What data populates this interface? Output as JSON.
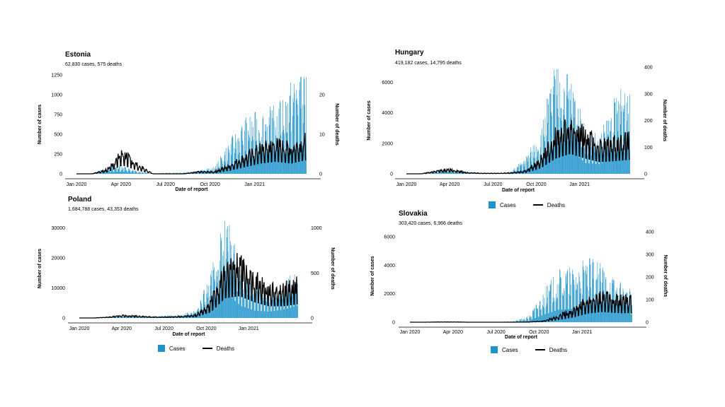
{
  "colors": {
    "cases": "#1f94cc",
    "deaths": "#000000",
    "axis": "#000000"
  },
  "legend": {
    "cases_label": "Cases",
    "deaths_label": "Deaths"
  },
  "chart_data": [
    {
      "type": "bar",
      "title": "Estonia",
      "subtitle": "62,830 cases, 575 deaths",
      "xlabel": "Date of report",
      "ylabel": "Number of cases",
      "y2label": "Number of deaths",
      "x_ticks": [
        "Jan 2020",
        "Apr 2020",
        "Jul 2020",
        "Oct 2020",
        "Jan 2021"
      ],
      "y_ticks": [
        0,
        250,
        500,
        750,
        1000,
        1250
      ],
      "y2_ticks": [
        0,
        10,
        20
      ],
      "ylim": [
        0,
        1250
      ],
      "y2lim": [
        0,
        25
      ],
      "series": [
        {
          "name": "Cases",
          "type": "bar",
          "monthly": [
            0,
            0,
            60,
            80,
            20,
            5,
            10,
            15,
            30,
            60,
            300,
            480,
            550,
            580,
            800,
            1100
          ]
        },
        {
          "name": "Deaths",
          "type": "line",
          "monthly": [
            0,
            0,
            1,
            5,
            2,
            0,
            0,
            0,
            0.5,
            0.5,
            2,
            4,
            6,
            7,
            6,
            8
          ]
        }
      ]
    },
    {
      "type": "bar",
      "title": "Hungary",
      "subtitle": "419,182 cases, 14,795 deaths",
      "xlabel": "Date of report",
      "ylabel": "Number of cases",
      "y2label": "Number of deaths",
      "x_ticks": [
        "Jan 2020",
        "Apr 2020",
        "Jul 2020",
        "Oct 2020",
        "Jan 2021"
      ],
      "y_ticks": [
        0,
        2000,
        4000,
        6000
      ],
      "y2_ticks": [
        0,
        100,
        200,
        300,
        400
      ],
      "ylim": [
        0,
        7000
      ],
      "y2lim": [
        0,
        400
      ],
      "series": [
        {
          "name": "Cases",
          "type": "bar",
          "monthly": [
            0,
            0,
            100,
            200,
            50,
            20,
            20,
            100,
            800,
            2000,
            5200,
            4500,
            2000,
            1800,
            3500,
            4600
          ]
        },
        {
          "name": "Deaths",
          "type": "line",
          "monthly": [
            0,
            0,
            10,
            15,
            5,
            2,
            2,
            3,
            10,
            50,
            130,
            170,
            130,
            100,
            110,
            120
          ]
        }
      ]
    },
    {
      "type": "bar",
      "title": "Poland",
      "subtitle": "1,684,788 cases, 43,353 deaths",
      "xlabel": "Date of report",
      "ylabel": "Number of cases",
      "y2label": "Number of deaths",
      "x_ticks": [
        "Jan 2020",
        "Apr 2020",
        "Jul 2020",
        "Oct 2020",
        "Jan 2021"
      ],
      "y_ticks": [
        0,
        10000,
        20000,
        30000
      ],
      "y2_ticks": [
        0,
        500,
        1000
      ],
      "ylim": [
        0,
        33000
      ],
      "y2lim": [
        0,
        1100
      ],
      "series": [
        {
          "name": "Cases",
          "type": "bar",
          "monthly": [
            0,
            0,
            300,
            400,
            400,
            350,
            600,
            800,
            2000,
            10000,
            25000,
            12000,
            7000,
            6000,
            8000,
            12000
          ]
        },
        {
          "name": "Deaths",
          "type": "line",
          "monthly": [
            0,
            0,
            10,
            25,
            20,
            10,
            10,
            15,
            30,
            150,
            500,
            550,
            400,
            300,
            300,
            350
          ]
        }
      ]
    },
    {
      "type": "bar",
      "title": "Slovakia",
      "subtitle": "303,420 cases, 6,966 deaths",
      "xlabel": "Date of report",
      "ylabel": "Number of cases",
      "y2label": "Number of deaths",
      "x_ticks": [
        "Jan 2020",
        "Apr 2020",
        "Jul 2020",
        "Oct 2020",
        "Jan 2021"
      ],
      "y_ticks": [
        0,
        2000,
        4000,
        6000
      ],
      "y2_ticks": [
        0,
        100,
        200,
        300,
        400
      ],
      "ylim": [
        0,
        6500
      ],
      "y2lim": [
        0,
        410
      ],
      "series": [
        {
          "name": "Cases",
          "type": "bar",
          "monthly": [
            0,
            0,
            20,
            30,
            10,
            5,
            20,
            60,
            300,
            1500,
            2500,
            2700,
            3100,
            2800,
            2000,
            1500
          ]
        },
        {
          "name": "Deaths",
          "type": "line",
          "monthly": [
            0,
            0,
            1,
            1,
            0,
            0,
            0,
            0,
            1,
            5,
            25,
            50,
            90,
            105,
            95,
            90
          ]
        }
      ]
    }
  ]
}
